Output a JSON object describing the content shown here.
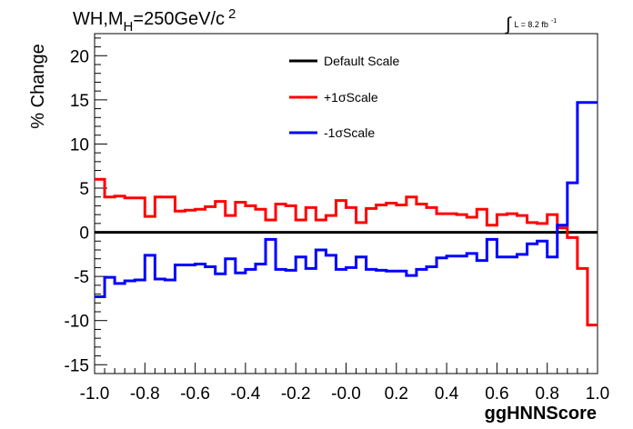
{
  "chart_data": {
    "type": "line",
    "title": {
      "prefix": "WH,M",
      "subscript": "H",
      "value": "=250GeV/c",
      "superscript": "2"
    },
    "lumi": {
      "integral": "∫",
      "text": "L = 8.2 fb",
      "superscript": "-1"
    },
    "xlabel": "ggHNNScore",
    "ylabel": "% Change",
    "xlim": [
      -1.0,
      1.0
    ],
    "ylim": [
      -16,
      22.5
    ],
    "x_ticks": [
      "-1.0",
      "-0.8",
      "-0.6",
      "-0.4",
      "-0.2",
      "-0.0",
      "0.2",
      "0.4",
      "0.6",
      "0.8",
      "1.0"
    ],
    "x_tick_values": [
      -1.0,
      -0.8,
      -0.6,
      -0.4,
      -0.2,
      0.0,
      0.2,
      0.4,
      0.6,
      0.8,
      1.0
    ],
    "y_ticks": [
      "-15",
      "-10",
      "-5",
      "0",
      "5",
      "10",
      "15",
      "20"
    ],
    "y_tick_values": [
      -15,
      -10,
      -5,
      0,
      5,
      10,
      15,
      20
    ],
    "legend_position": "top-center",
    "grid": false,
    "bin_edges_start": -1.0,
    "bin_width": 0.04,
    "series": [
      {
        "name": "Default Scale",
        "color": "#000000",
        "values": [
          0,
          0,
          0,
          0,
          0,
          0,
          0,
          0,
          0,
          0,
          0,
          0,
          0,
          0,
          0,
          0,
          0,
          0,
          0,
          0,
          0,
          0,
          0,
          0,
          0,
          0,
          0,
          0,
          0,
          0,
          0,
          0,
          0,
          0,
          0,
          0,
          0,
          0,
          0,
          0,
          0,
          0,
          0,
          0,
          0,
          0,
          0,
          0,
          0,
          0
        ]
      },
      {
        "name": "+1σScale",
        "color": "#ff0000",
        "values": [
          6.0,
          4.0,
          4.1,
          3.9,
          3.9,
          1.8,
          4.0,
          4.0,
          2.4,
          2.5,
          2.6,
          2.9,
          3.5,
          1.9,
          3.4,
          3.0,
          2.6,
          1.4,
          3.2,
          3.0,
          1.4,
          2.8,
          1.4,
          1.9,
          3.6,
          2.8,
          1.1,
          2.7,
          3.1,
          3.3,
          3.1,
          4.0,
          3.2,
          2.8,
          2.1,
          2.1,
          2.0,
          1.7,
          2.6,
          0.8,
          2.0,
          2.1,
          1.9,
          1.1,
          1.0,
          2.0,
          0.5,
          -0.6,
          -4.1,
          -10.5
        ]
      },
      {
        "name": "-1σScale",
        "color": "#0000ff",
        "values": [
          -7.3,
          -5.1,
          -5.8,
          -5.5,
          -5.4,
          -2.6,
          -5.3,
          -5.4,
          -3.7,
          -3.7,
          -3.6,
          -3.9,
          -4.7,
          -3.0,
          -4.6,
          -4.2,
          -3.6,
          -0.8,
          -4.2,
          -4.3,
          -2.8,
          -4.1,
          -2.0,
          -2.6,
          -4.2,
          -4.0,
          -2.8,
          -4.2,
          -4.3,
          -4.4,
          -4.4,
          -4.9,
          -4.2,
          -3.9,
          -2.9,
          -2.7,
          -2.7,
          -2.4,
          -3.2,
          -0.8,
          -2.8,
          -2.8,
          -2.5,
          -1.3,
          -1.0,
          -2.8,
          0.8,
          5.6,
          14.7,
          14.7
        ]
      }
    ]
  }
}
